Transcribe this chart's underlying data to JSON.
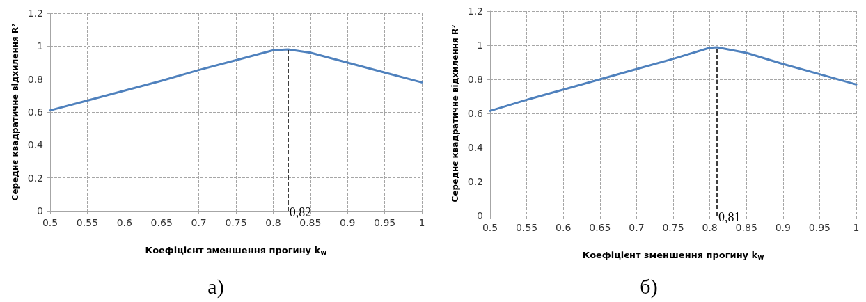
{
  "chart_data": [
    {
      "type": "line",
      "xlabel": "Коефіцієнт зменшення прогину k$_{w}$",
      "ylabel": "Середнє квадратичне відхилення R²",
      "annotations": [
        "а)"
      ],
      "x": [
        0.5,
        0.55,
        0.6,
        0.65,
        0.7,
        0.75,
        0.8,
        0.82,
        0.85,
        0.9,
        0.95,
        1.0
      ],
      "series": [
        {
          "color": "#4f81bd",
          "values": [
            0.61,
            0.67,
            0.73,
            0.79,
            0.855,
            0.915,
            0.975,
            0.98,
            0.96,
            0.9,
            0.84,
            0.78
          ]
        }
      ],
      "xlim": [
        0.5,
        1
      ],
      "xticks": [
        0.5,
        0.55,
        0.6,
        0.65,
        0.7,
        0.75,
        0.8,
        0.85,
        0.9,
        0.95,
        1
      ],
      "ylim": [
        0,
        1.2
      ],
      "yticks": [
        0,
        0.2,
        0.4,
        0.6,
        0.8,
        1,
        1.2
      ],
      "grid": true,
      "marker": "none",
      "line_style": "solid",
      "ref_lines": [
        {
          "axis": "x",
          "value": 0.82,
          "label": "0,82",
          "color": "#000000",
          "line_style": "dashed"
        }
      ]
    },
    {
      "type": "line",
      "xlabel": "Коефіцієнт зменшення прогину k$_{w}$",
      "ylabel": "Середнє квадратичне відхилення R²",
      "annotations": [
        "б)"
      ],
      "x": [
        0.5,
        0.55,
        0.6,
        0.65,
        0.7,
        0.75,
        0.8,
        0.81,
        0.85,
        0.9,
        0.95,
        1.0
      ],
      "series": [
        {
          "color": "#4f81bd",
          "values": [
            0.615,
            0.68,
            0.74,
            0.8,
            0.86,
            0.92,
            0.985,
            0.988,
            0.955,
            0.89,
            0.83,
            0.77
          ]
        }
      ],
      "xlim": [
        0.5,
        1
      ],
      "xticks": [
        0.5,
        0.55,
        0.6,
        0.65,
        0.7,
        0.75,
        0.8,
        0.85,
        0.9,
        0.95,
        1
      ],
      "ylim": [
        0,
        1.2
      ],
      "yticks": [
        0,
        0.2,
        0.4,
        0.6,
        0.8,
        1,
        1.2
      ],
      "grid": true,
      "marker": "none",
      "line_style": "solid",
      "ref_lines": [
        {
          "axis": "x",
          "value": 0.81,
          "label": "0,81",
          "color": "#000000",
          "line_style": "dashed"
        }
      ]
    }
  ]
}
